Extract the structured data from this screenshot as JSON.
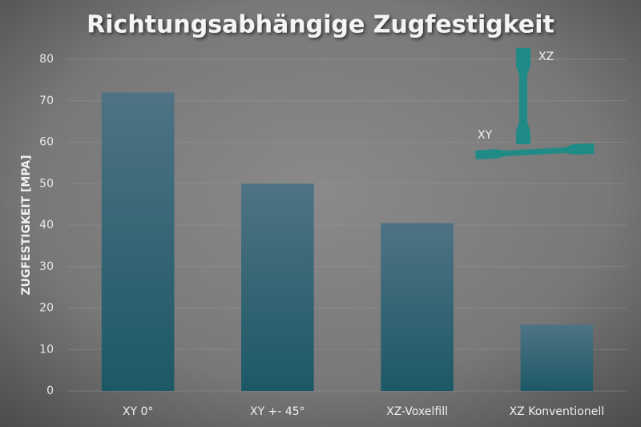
{
  "chart_data": {
    "type": "bar",
    "title": "Richtungsabhängige Zugfestigkeit",
    "y_label": "ZUGFESTIGKEIT [MPA]",
    "categories": [
      "XY 0°",
      "XY +- 45°",
      "XZ-Voxelfill",
      "XZ Konventionell"
    ],
    "values": [
      72,
      50,
      40.5,
      16
    ],
    "color": "#2a6474",
    "ylim": [
      0,
      80
    ],
    "yticks": [
      0,
      10,
      20,
      30,
      40,
      50,
      60,
      70,
      80
    ],
    "grid": true,
    "annotations": [
      "XZ",
      "XY"
    ]
  }
}
